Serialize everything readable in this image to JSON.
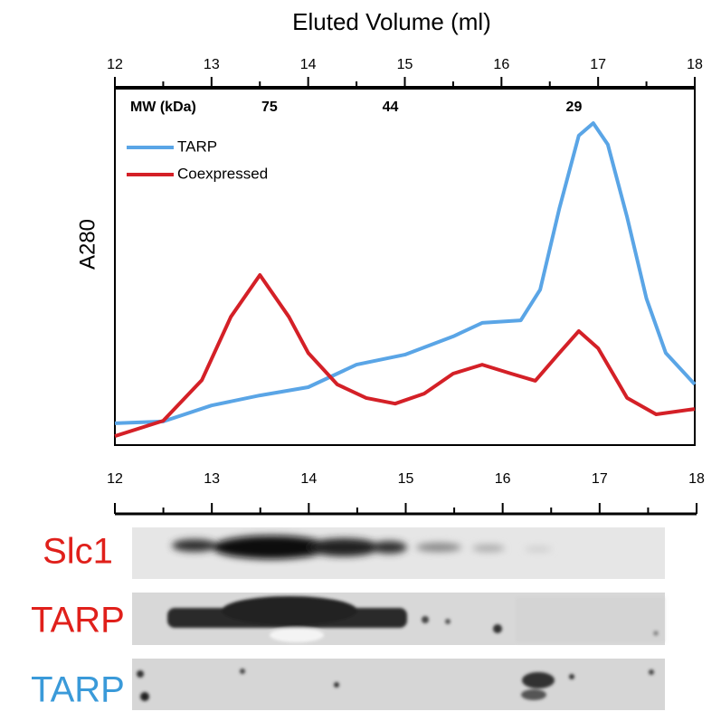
{
  "chart_data": {
    "type": "line",
    "title": "Eluted Volume (ml)",
    "y_label": "A280",
    "xlim": [
      12,
      18
    ],
    "xticks": [
      12,
      13,
      14,
      15,
      16,
      17,
      18
    ],
    "ylim": [
      0,
      100
    ],
    "legend": "upper-left",
    "annotations": [
      {
        "text": "MW (kDa)",
        "x": 12.5
      },
      {
        "text": "75",
        "x": 13.6
      },
      {
        "text": "44",
        "x": 14.85
      },
      {
        "text": "29",
        "x": 16.75
      }
    ],
    "series": [
      {
        "name": "TARP",
        "color": "#5aa5e6",
        "x": [
          12.0,
          12.5,
          13.0,
          13.5,
          14.0,
          14.5,
          15.0,
          15.5,
          15.8,
          16.2,
          16.4,
          16.6,
          16.8,
          16.95,
          17.1,
          17.3,
          17.5,
          17.7,
          18.0
        ],
        "values": [
          6.1,
          6.6,
          11.1,
          13.9,
          16.2,
          22.5,
          25.3,
          30.4,
          34.2,
          34.9,
          43.5,
          66.3,
          86.6,
          90.1,
          84.1,
          63.8,
          41.0,
          25.8,
          17.0
        ]
      },
      {
        "name": "Coexpressed",
        "color": "#d42027",
        "x": [
          12.0,
          12.5,
          12.9,
          13.2,
          13.5,
          13.8,
          14.0,
          14.3,
          14.6,
          14.9,
          15.2,
          15.5,
          15.8,
          16.1,
          16.35,
          16.6,
          16.8,
          17.0,
          17.3,
          17.6,
          18.0
        ],
        "values": [
          2.5,
          6.8,
          18.2,
          35.9,
          47.6,
          35.9,
          25.8,
          17.0,
          13.2,
          11.6,
          14.4,
          20.0,
          22.5,
          20.0,
          18.0,
          25.8,
          31.9,
          27.1,
          13.2,
          8.6,
          10.1
        ]
      }
    ],
    "blots": [
      {
        "label": "Slc1",
        "color": "#e0201b"
      },
      {
        "label": "TARP",
        "color": "#e0201b"
      },
      {
        "label": "TARP",
        "color": "#3a9ad9"
      }
    ]
  }
}
